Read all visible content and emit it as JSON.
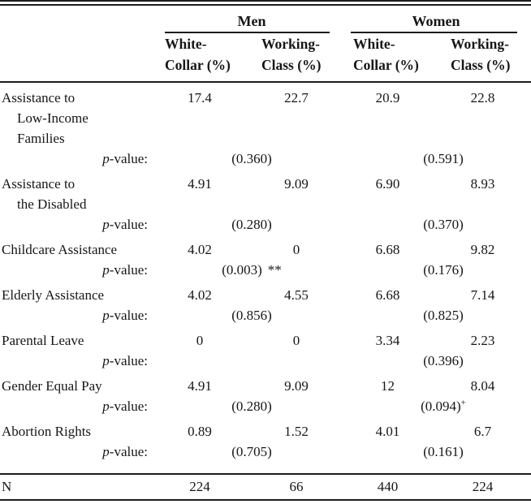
{
  "colors": {
    "background": "#ffffff",
    "text": "#161616",
    "rule": "#1c1c1c"
  },
  "p_value_label": {
    "italic": "p",
    "rest": "-value:"
  },
  "header": {
    "groups": [
      {
        "label": "Men",
        "columns": [
          {
            "line1": "White-",
            "line2": "Collar (%)"
          },
          {
            "line1": "Working-",
            "line2": "Class (%)"
          }
        ]
      },
      {
        "label": "Women",
        "columns": [
          {
            "line1": "White-",
            "line2": "Collar (%)"
          },
          {
            "line1": "Working-",
            "line2": "Class (%)"
          }
        ]
      }
    ]
  },
  "rows": [
    {
      "label_lines": [
        "Assistance to",
        "Low-Income",
        "Families"
      ],
      "values": [
        "17.4",
        "22.7",
        "20.9",
        "22.8"
      ],
      "p": {
        "men": "(0.360)",
        "women": "(0.591)"
      }
    },
    {
      "label_lines": [
        "Assistance to",
        "the Disabled"
      ],
      "values": [
        "4.91",
        "9.09",
        "6.90",
        "8.93"
      ],
      "p": {
        "men": "(0.280)",
        "women": "(0.370)"
      }
    },
    {
      "label_lines": [
        "Childcare Assistance"
      ],
      "values": [
        "4.02",
        "0",
        "6.68",
        "9.82"
      ],
      "p": {
        "men": "(0.003)",
        "men_suffix": "**",
        "women": "(0.176)"
      }
    },
    {
      "label_lines": [
        "Elderly Assistance"
      ],
      "values": [
        "4.02",
        "4.55",
        "6.68",
        "7.14"
      ],
      "p": {
        "men": "(0.856)",
        "women": "(0.825)"
      }
    },
    {
      "label_lines": [
        "Parental Leave"
      ],
      "values": [
        "0",
        "0",
        "3.34",
        "2.23"
      ],
      "p": {
        "men": "",
        "women": "(0.396)"
      }
    },
    {
      "label_lines": [
        "Gender Equal Pay"
      ],
      "values": [
        "4.91",
        "9.09",
        "12",
        "8.04"
      ],
      "p": {
        "men": "(0.280)",
        "women": "(0.094)",
        "women_sup": "+"
      }
    },
    {
      "label_lines": [
        "Abortion Rights"
      ],
      "values": [
        "0.89",
        "1.52",
        "4.01",
        "6.7"
      ],
      "p": {
        "men": "(0.705)",
        "women": "(0.161)"
      }
    }
  ],
  "footer": {
    "label": "N",
    "values": [
      "224",
      "66",
      "440",
      "224"
    ]
  }
}
